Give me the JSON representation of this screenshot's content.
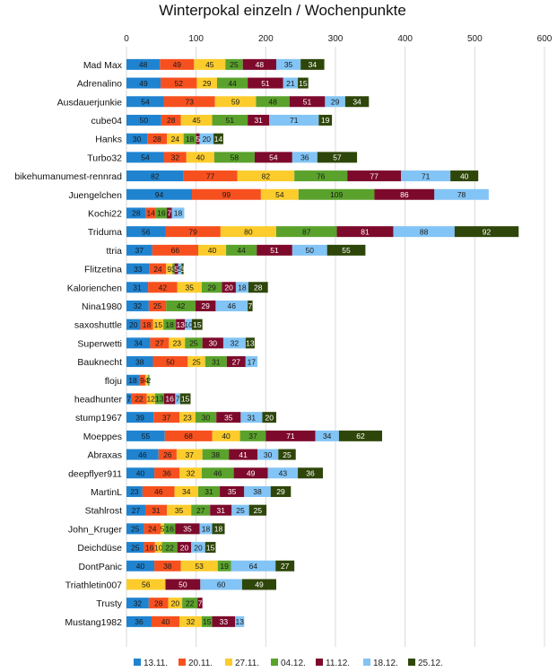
{
  "chart_data": {
    "type": "bar",
    "stacked": true,
    "orientation": "horizontal",
    "title": "Winterpokal einzeln / Wochenpunkte",
    "xlim": [
      0,
      600
    ],
    "xticks": [
      "0",
      "100",
      "200",
      "300",
      "400",
      "500",
      "600"
    ],
    "legend_position": "bottom",
    "categories": [
      "Mad Max",
      "Adrenalino",
      "Ausdauerjunkie",
      "cube04",
      "Hanks",
      "Turbo32",
      "bikehumanumest-rennrad",
      "Juengelchen",
      "Kochi22",
      "Triduma",
      "ttria",
      "Flitzetina",
      "Kalorienchen",
      "Nina1980",
      "saxoshuttle",
      "Superwetti",
      "Bauknecht",
      "floju",
      "headhunter",
      "stump1967",
      "Moeppes",
      "Abraxas",
      "deepflyer911",
      "MartinL",
      "Stahlrost",
      "John_Kruger",
      "Deichdüse",
      "DontPanic",
      "Triathletin007",
      "Trusty",
      "Mustang1982"
    ],
    "series": [
      {
        "name": "13.11.",
        "color": "#1f83d0",
        "values": [
          48,
          49,
          54,
          50,
          30,
          54,
          82,
          94,
          28,
          56,
          37,
          33,
          31,
          32,
          20,
          34,
          38,
          18,
          7,
          39,
          55,
          46,
          40,
          23,
          27,
          25,
          25,
          40,
          0,
          32,
          36
        ]
      },
      {
        "name": "20.11.",
        "color": "#f7501f",
        "values": [
          49,
          52,
          73,
          28,
          28,
          32,
          77,
          99,
          14,
          79,
          66,
          24,
          42,
          25,
          18,
          27,
          50,
          9,
          22,
          37,
          68,
          26,
          36,
          46,
          31,
          24,
          16,
          38,
          0,
          28,
          40
        ]
      },
      {
        "name": "27.11.",
        "color": "#fbcc2c",
        "values": [
          45,
          29,
          59,
          45,
          24,
          40,
          82,
          54,
          0,
          80,
          40,
          9,
          35,
          0,
          15,
          23,
          25,
          4,
          12,
          23,
          40,
          37,
          32,
          34,
          35,
          5,
          10,
          53,
          56,
          20,
          32
        ]
      },
      {
        "name": "04.12.",
        "color": "#5aa22c",
        "values": [
          25,
          44,
          48,
          51,
          18,
          58,
          76,
          109,
          16,
          87,
          44,
          3,
          29,
          42,
          18,
          25,
          31,
          2,
          13,
          30,
          37,
          38,
          46,
          31,
          27,
          16,
          22,
          19,
          0,
          22,
          15
        ]
      },
      {
        "name": "11.12.",
        "color": "#7d0a2c",
        "values": [
          48,
          51,
          51,
          31,
          5,
          54,
          77,
          86,
          7,
          81,
          51,
          5,
          20,
          29,
          13,
          30,
          27,
          0,
          16,
          35,
          71,
          41,
          49,
          35,
          31,
          35,
          20,
          0,
          50,
          7,
          33
        ]
      },
      {
        "name": "18.12.",
        "color": "#82c4f5",
        "values": [
          35,
          21,
          29,
          71,
          20,
          36,
          71,
          78,
          18,
          88,
          50,
          5,
          18,
          46,
          10,
          32,
          17,
          0,
          7,
          31,
          34,
          30,
          43,
          38,
          25,
          18,
          20,
          64,
          60,
          0,
          13
        ]
      },
      {
        "name": "25.12.",
        "color": "#2f460a",
        "values": [
          34,
          15,
          34,
          19,
          14,
          57,
          40,
          0,
          0,
          92,
          55,
          3,
          28,
          7,
          15,
          13,
          0,
          0,
          15,
          20,
          62,
          25,
          36,
          29,
          25,
          18,
          15,
          27,
          49,
          0,
          0
        ]
      }
    ]
  }
}
